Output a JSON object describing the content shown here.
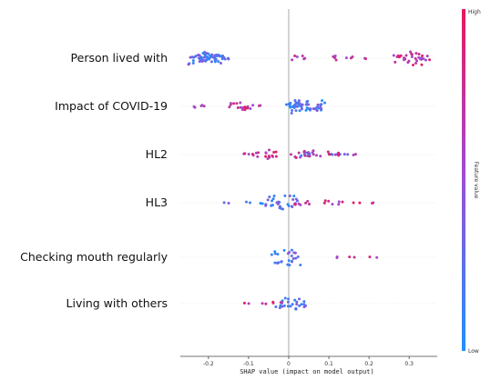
{
  "chart_data": {
    "type": "scatter",
    "subtype": "shap-beeswarm",
    "xlabel": "SHAP value (impact on model output)",
    "xticks": [
      -0.2,
      -0.1,
      0,
      0.1,
      0.2,
      0.3
    ],
    "xtick_labels": [
      "-0.2",
      "-0.1",
      "0",
      "0.1",
      "0.2",
      "0.3"
    ],
    "xlim": [
      -0.27,
      0.37
    ],
    "features": [
      {
        "name": "Person lived with",
        "low": [
          [
            -0.22,
            0.6
          ],
          [
            -0.21,
            0.5
          ],
          [
            -0.2,
            0.5
          ],
          [
            -0.19,
            0.4
          ],
          [
            -0.18,
            0.3
          ],
          [
            -0.17,
            0.2
          ],
          [
            -0.16,
            0.2
          ],
          [
            -0.15,
            0.1
          ],
          [
            -0.22,
            0.3
          ],
          [
            -0.21,
            0.25
          ]
        ],
        "high": [
          [
            0.02,
            0.3
          ],
          [
            0.12,
            0.2
          ],
          [
            0.15,
            0.15
          ],
          [
            0.2,
            0.1
          ],
          [
            0.28,
            0.4
          ],
          [
            0.3,
            0.5
          ],
          [
            0.32,
            0.6
          ],
          [
            0.34,
            0.2
          ]
        ]
      },
      {
        "name": "Impact of COVID-19",
        "low": [
          [
            0.0,
            0.2
          ],
          [
            0.02,
            0.4
          ],
          [
            0.03,
            0.5
          ],
          [
            0.04,
            0.6
          ],
          [
            0.05,
            0.5
          ],
          [
            0.06,
            0.4
          ],
          [
            0.07,
            0.3
          ]
        ],
        "high": [
          [
            -0.24,
            0.1
          ],
          [
            -0.21,
            0.15
          ],
          [
            -0.13,
            0.3
          ],
          [
            -0.12,
            0.35
          ],
          [
            -0.1,
            0.2
          ],
          [
            -0.08,
            0.1
          ]
        ]
      },
      {
        "name": "HL2",
        "low": [
          [
            0.04,
            0.2
          ],
          [
            0.06,
            0.15
          ],
          [
            0.1,
            0.1
          ],
          [
            0.13,
            0.05
          ],
          [
            0.15,
            0.05
          ]
        ],
        "high": [
          [
            -0.12,
            0.1
          ],
          [
            -0.09,
            0.2
          ],
          [
            -0.06,
            0.4
          ],
          [
            -0.04,
            0.3
          ],
          [
            0.02,
            0.3
          ],
          [
            0.05,
            0.4
          ],
          [
            0.08,
            0.3
          ],
          [
            0.12,
            0.15
          ],
          [
            0.17,
            0.05
          ]
        ]
      },
      {
        "name": "HL3",
        "low": [
          [
            -0.15,
            0.05
          ],
          [
            -0.1,
            0.1
          ],
          [
            -0.06,
            0.2
          ],
          [
            -0.04,
            0.3
          ],
          [
            -0.02,
            0.5
          ],
          [
            -0.01,
            0.6
          ]
        ],
        "high": [
          [
            0.02,
            0.2
          ],
          [
            0.05,
            0.15
          ],
          [
            0.1,
            0.2
          ],
          [
            0.13,
            0.15
          ],
          [
            0.17,
            0.1
          ],
          [
            0.2,
            0.05
          ]
        ]
      },
      {
        "name": "Checking mouth regularly",
        "low": [
          [
            -0.01,
            0.6
          ],
          [
            0.0,
            0.7
          ]
        ],
        "high": [
          [
            0.13,
            0.05
          ],
          [
            0.16,
            0.05
          ],
          [
            0.21,
            0.05
          ]
        ]
      },
      {
        "name": "Living with others",
        "low": [
          [
            0.0,
            0.5
          ],
          [
            0.01,
            0.6
          ],
          [
            0.02,
            0.3
          ]
        ],
        "high": [
          [
            -0.1,
            0.05
          ],
          [
            -0.06,
            0.1
          ],
          [
            -0.03,
            0.15
          ],
          [
            -0.01,
            0.1
          ]
        ]
      }
    ],
    "colorbar": {
      "title": "Feature value",
      "high_label": "High",
      "low_label": "Low"
    },
    "colors": {
      "low": "#1e90ff",
      "mid": "#9b4fd6",
      "high": "#e8185d"
    },
    "grid": false
  }
}
